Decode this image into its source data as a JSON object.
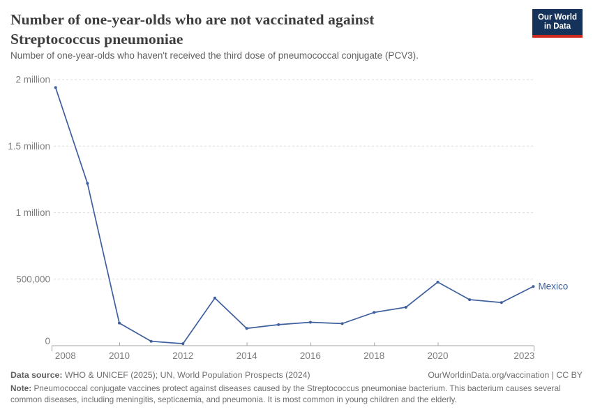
{
  "header": {
    "title": "Number of one-year-olds who are not vaccinated against Streptococcus pneumoniae",
    "subtitle": "Number of one-year-olds who haven't received the third dose of pneumococcal conjugate (PCV3).",
    "logo": {
      "line1": "Our World",
      "line2": "in Data",
      "bg_color": "#15335a",
      "accent_color": "#cd2a1d"
    }
  },
  "chart_data": {
    "type": "line",
    "title": "Number of one-year-olds who are not vaccinated against Streptococcus pneumoniae",
    "subtitle": "Number of one-year-olds who haven't received the third dose of pneumococcal conjugate (PCV3).",
    "xlabel": "",
    "ylabel": "",
    "ylim": [
      0,
      2000000
    ],
    "xlim": [
      2008,
      2023
    ],
    "grid": "horizontal-dashed",
    "legend_position": "end-of-line-label",
    "x": [
      2008,
      2009,
      2010,
      2011,
      2012,
      2013,
      2014,
      2015,
      2016,
      2017,
      2018,
      2019,
      2020,
      2021,
      2022,
      2023
    ],
    "series": [
      {
        "name": "Mexico",
        "color": "#3E5F9E",
        "values": [
          1940000,
          1220000,
          170000,
          33000,
          15000,
          358000,
          130000,
          158000,
          176000,
          166000,
          250000,
          289000,
          478000,
          346000,
          324000,
          445000
        ]
      }
    ],
    "y_ticks": [
      {
        "value": 0,
        "label": "0"
      },
      {
        "value": 500000,
        "label": "500,000"
      },
      {
        "value": 1000000,
        "label": "1 million"
      },
      {
        "value": 1500000,
        "label": "1.5 million"
      },
      {
        "value": 2000000,
        "label": "2 million"
      }
    ],
    "x_ticks": [
      {
        "year": 2008,
        "label": "2008"
      },
      {
        "year": 2010,
        "label": "2010"
      },
      {
        "year": 2012,
        "label": "2012"
      },
      {
        "year": 2014,
        "label": "2014"
      },
      {
        "year": 2016,
        "label": "2016"
      },
      {
        "year": 2018,
        "label": "2018"
      },
      {
        "year": 2020,
        "label": "2020"
      },
      {
        "year": 2023,
        "label": "2023"
      }
    ],
    "colors": {
      "gridline": "#dedede",
      "axis_line": "#a3a3a3",
      "tick_label": "#7d7d7d"
    }
  },
  "footer": {
    "source_label": "Data source:",
    "source_text": "WHO & UNICEF (2025); UN, World Population Prospects (2024)",
    "url_text": "OurWorldinData.org/vaccination | CC BY",
    "note_label": "Note:",
    "note_text": "Pneumococcal conjugate vaccines protect against diseases caused by the Streptococcus pneumoniae bacterium. This bacterium causes several common diseases, including meningitis, septicaemia, and pneumonia. It is most common in young children and the elderly."
  }
}
